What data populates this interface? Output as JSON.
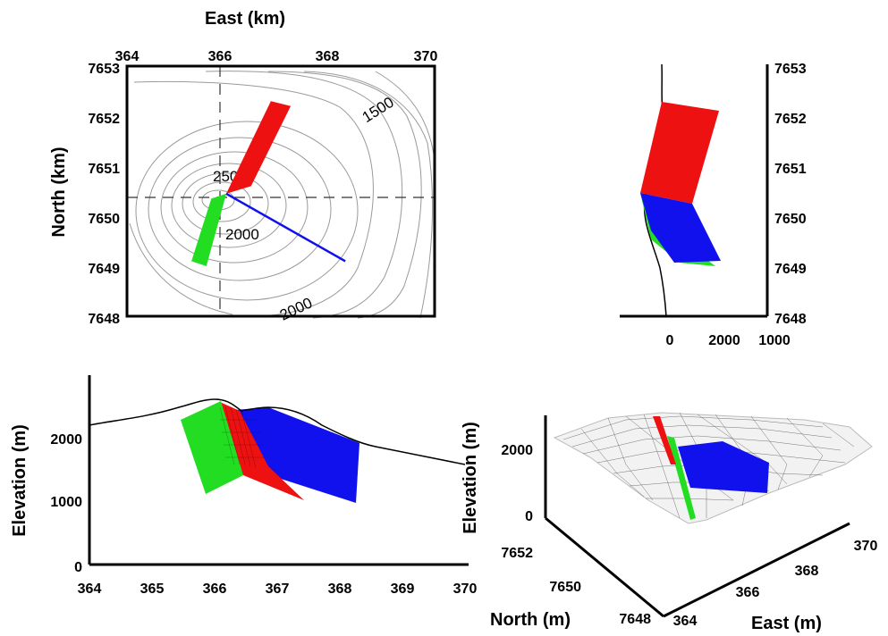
{
  "colors": {
    "red": "#ee1111",
    "green": "#22dd22",
    "blue": "#1111ee",
    "contour": "#9a9a9a",
    "axis": "#000000",
    "mesh": "#000000"
  },
  "map_panel": {
    "xlabel": "East (km)",
    "ylabel": "North (km)",
    "xticks": [
      "364",
      "366",
      "368",
      "370"
    ],
    "yticks": [
      "7653",
      "7652",
      "7651",
      "7650",
      "7649",
      "7648"
    ],
    "contour_labels": [
      "1500",
      "2500",
      "2000",
      "2000"
    ],
    "origin": {
      "east": 366.0,
      "north": 7650.4
    },
    "planes": [
      {
        "name": "red",
        "corners": [
          [
            366.0,
            7650.45
          ],
          [
            366.5,
            7650.6
          ],
          [
            367.3,
            7652.2
          ],
          [
            366.9,
            7652.3
          ]
        ]
      },
      {
        "name": "green",
        "corners": [
          [
            366.0,
            7650.45
          ],
          [
            365.7,
            7650.35
          ],
          [
            365.3,
            7649.1
          ],
          [
            365.6,
            7649.0
          ]
        ]
      }
    ],
    "blue_line": {
      "from": [
        366.0,
        7650.45
      ],
      "to": [
        368.4,
        7649.1
      ]
    }
  },
  "side_panel": {
    "xticks": [
      "0",
      "2000",
      "1000"
    ],
    "yticks": [
      "7653",
      "7652",
      "7651",
      "7650",
      "7649",
      "7648"
    ]
  },
  "section_panel": {
    "xlabel": "",
    "ylabel": "Elevation (m)",
    "xticks": [
      "364",
      "365",
      "366",
      "367",
      "368",
      "369",
      "370"
    ],
    "yticks": [
      "2000",
      "1000",
      "0"
    ]
  },
  "perspective_panel": {
    "zlabel": "Elevation (m)",
    "xlabel": "East (m)",
    "ylabel": "North (m)",
    "zticks": [
      "2000",
      "0"
    ],
    "east_ticks": [
      "364",
      "366",
      "368",
      "370"
    ],
    "north_ticks": [
      "7652",
      "7650",
      "7648"
    ]
  }
}
